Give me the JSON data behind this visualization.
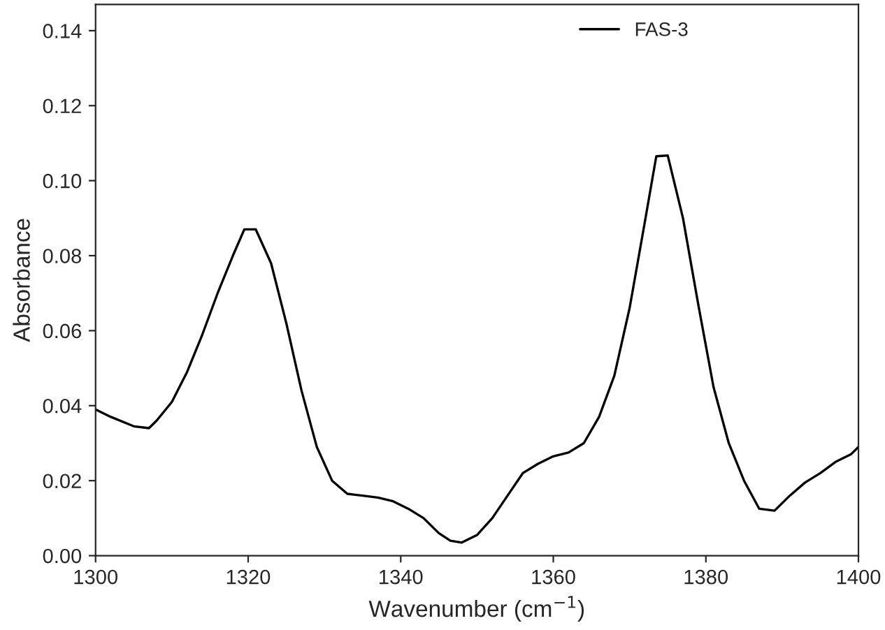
{
  "chart_data": {
    "type": "line",
    "xlabel": "Wavenumber (cm$^{−1}$)",
    "ylabel": "Absorbance",
    "xlim": [
      1300,
      1400
    ],
    "xticks": [
      1300,
      1320,
      1340,
      1360,
      1380,
      1400
    ],
    "ylim": [
      0,
      0.147
    ],
    "yticks": [
      {
        "value": 0,
        "label": "0.00"
      },
      {
        "value": 0.02,
        "label": "0.02"
      },
      {
        "value": 0.04,
        "label": "0.04"
      },
      {
        "value": 0.06,
        "label": "0.06"
      },
      {
        "value": 0.08,
        "label": "0.08"
      },
      {
        "value": 0.1,
        "label": "0.10"
      },
      {
        "value": 0.12,
        "label": "0.12"
      },
      {
        "value": 0.14,
        "label": "0.14"
      }
    ],
    "legend": "top right",
    "grid": false,
    "marker": "none",
    "line_style": "solid",
    "series": [
      {
        "name": "FAS-3",
        "color": "#000000",
        "x": [
          1300,
          1302,
          1305,
          1307,
          1308,
          1310,
          1312,
          1314,
          1316,
          1318,
          1319.5,
          1321,
          1323,
          1325,
          1327,
          1329,
          1331,
          1333,
          1335,
          1337,
          1339,
          1341,
          1343,
          1345,
          1346.5,
          1348,
          1350,
          1352,
          1354,
          1356,
          1358,
          1360,
          1362,
          1364,
          1366,
          1368,
          1370,
          1372,
          1373.5,
          1375,
          1377,
          1379,
          1381,
          1383,
          1385,
          1387,
          1389,
          1391,
          1393,
          1395,
          1397,
          1399,
          1400
        ],
        "values": [
          0.039,
          0.037,
          0.0345,
          0.034,
          0.036,
          0.041,
          0.049,
          0.059,
          0.07,
          0.08,
          0.087,
          0.087,
          0.078,
          0.062,
          0.044,
          0.029,
          0.02,
          0.0165,
          0.016,
          0.0155,
          0.0145,
          0.0125,
          0.01,
          0.006,
          0.004,
          0.0035,
          0.0055,
          0.01,
          0.016,
          0.022,
          0.0245,
          0.0265,
          0.0275,
          0.03,
          0.037,
          0.048,
          0.066,
          0.089,
          0.1065,
          0.1067,
          0.09,
          0.067,
          0.045,
          0.03,
          0.02,
          0.0125,
          0.012,
          0.016,
          0.0195,
          0.022,
          0.025,
          0.027,
          0.029
        ]
      }
    ]
  }
}
